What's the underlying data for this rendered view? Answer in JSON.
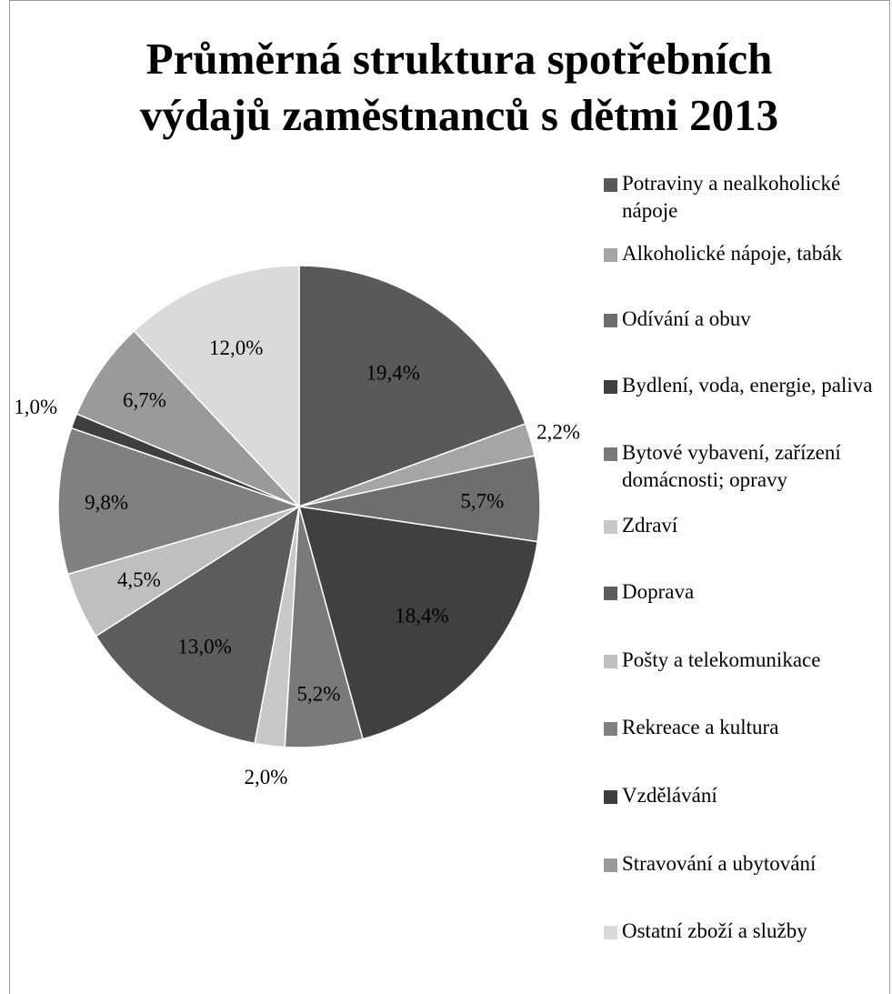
{
  "chart_data": {
    "type": "pie",
    "title_lines": [
      "Průměrná struktura spotřebních",
      "výdajů zaměstnanců s dětmi 2013"
    ],
    "slices": [
      {
        "name": "Potraviny a nealkoholické nápoje",
        "value": 19.4,
        "label": "19,4%",
        "color": "#595959"
      },
      {
        "name": "Alkoholické nápoje, tabák",
        "value": 2.2,
        "label": "2,2%",
        "color": "#a5a5a5"
      },
      {
        "name": "Odívání a obuv",
        "value": 5.7,
        "label": "5,7%",
        "color": "#6e6e6e"
      },
      {
        "name": "Bydlení, voda, energie, paliva",
        "value": 18.4,
        "label": "18,4%",
        "color": "#404040"
      },
      {
        "name": "Bytové vybavení, zařízení domácnosti; opravy",
        "value": 5.2,
        "label": "5,2%",
        "color": "#7a7a7a"
      },
      {
        "name": "Zdraví",
        "value": 2.0,
        "label": "2,0%",
        "color": "#c8c8c8"
      },
      {
        "name": "Doprava",
        "value": 13.0,
        "label": "13,0%",
        "color": "#5c5c5c"
      },
      {
        "name": "Pošty a telekomunikace",
        "value": 4.5,
        "label": "4,5%",
        "color": "#bfbfbf"
      },
      {
        "name": "Rekreace a kultura",
        "value": 9.8,
        "label": "9,8%",
        "color": "#808080"
      },
      {
        "name": "Vzdělávání",
        "value": 1.0,
        "label": "1,0%",
        "color": "#3f3f3f"
      },
      {
        "name": "Stravování a ubytování",
        "value": 6.7,
        "label": "6,7%",
        "color": "#9a9a9a"
      },
      {
        "name": "Ostatní zboží a služby",
        "value": 12.0,
        "label": "12,0%",
        "color": "#dadada"
      }
    ],
    "legend_position": "right"
  }
}
